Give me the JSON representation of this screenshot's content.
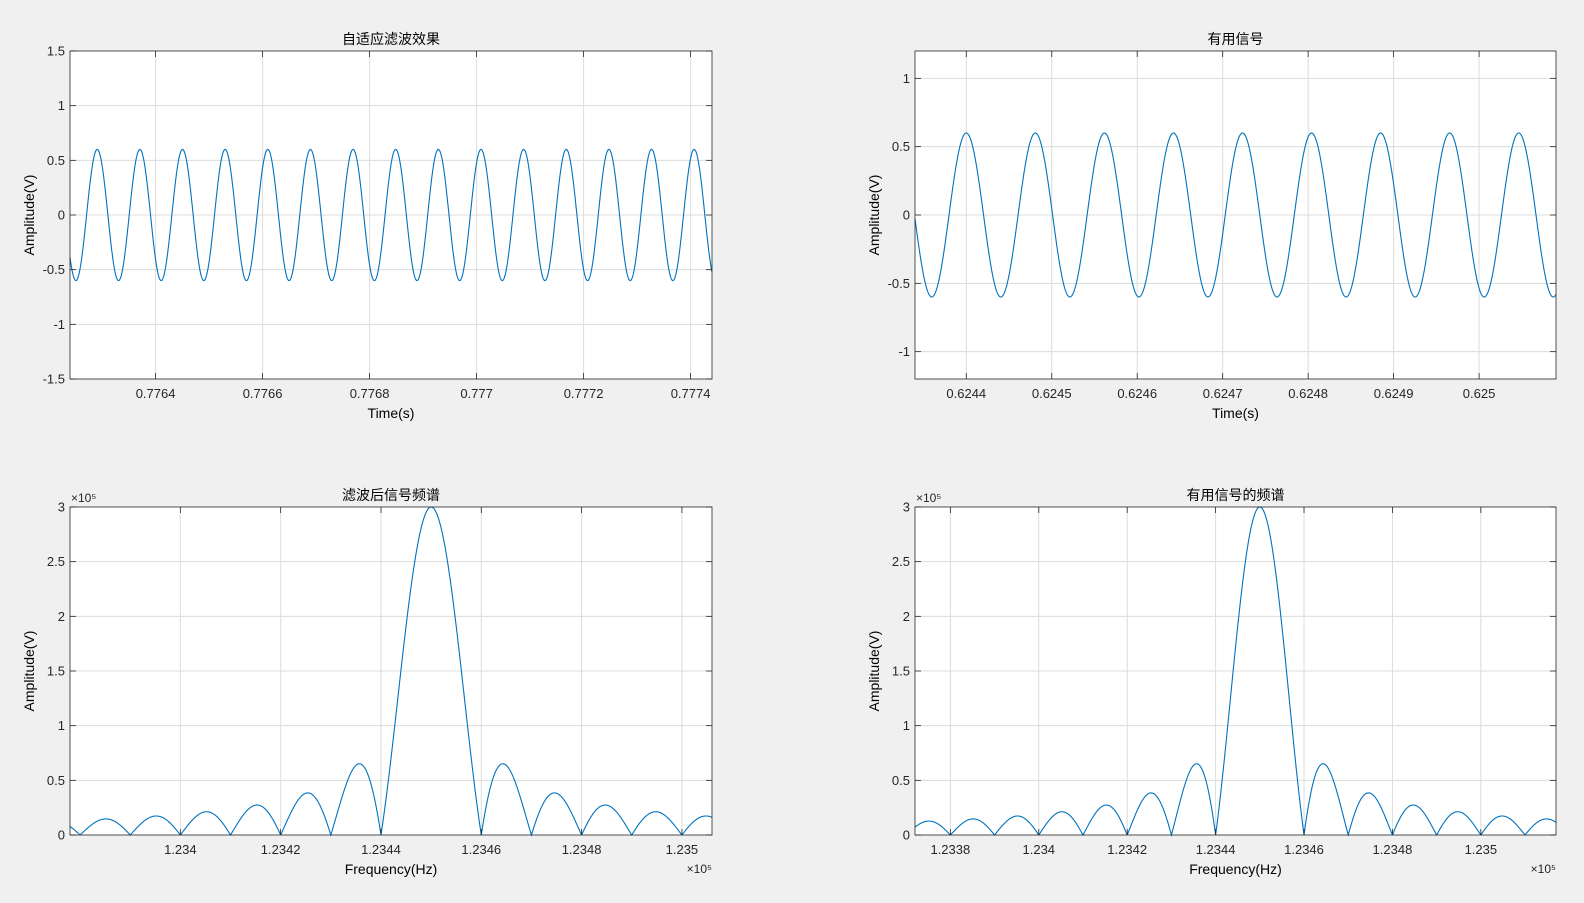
{
  "colors": {
    "figure_bg": "#f0f0f0",
    "axes_bg": "#ffffff",
    "line": "#0072bd",
    "grid": "#dcdcdc",
    "axis": "#262626"
  },
  "chart_data": [
    {
      "type": "line",
      "title": "自适应滤波效果",
      "xlabel": "Time(s)",
      "ylabel": "Amplitude(V)",
      "xlim": [
        0.77624,
        0.77744
      ],
      "ylim": [
        -1.5,
        1.5
      ],
      "xticks": [
        0.7764,
        0.7766,
        0.7768,
        0.777,
        0.7772,
        0.7774
      ],
      "xtick_labels": [
        "0.7764",
        "0.7766",
        "0.7768",
        "0.777",
        "0.7772",
        "0.7774"
      ],
      "yticks": [
        -1.5,
        -1,
        -0.5,
        0,
        0.5,
        1,
        1.5
      ],
      "ytick_labels": [
        "-1.5",
        "-1",
        "-0.5",
        "0",
        "0.5",
        "1",
        "1.5"
      ],
      "exponent": "",
      "grid": true,
      "series": [
        {
          "kind": "sine",
          "amplitude": 0.6,
          "period": 7.97e-05,
          "peak_x": 0.77653
        }
      ]
    },
    {
      "type": "line",
      "title": "有用信号",
      "xlabel": "Time(s)",
      "ylabel": "Amplitude(V)",
      "xlim": [
        0.62434,
        0.62509
      ],
      "ylim": [
        -1.2,
        1.2
      ],
      "xticks": [
        0.6244,
        0.6245,
        0.6246,
        0.6247,
        0.6248,
        0.6249,
        0.625
      ],
      "xtick_labels": [
        "0.6244",
        "0.6245",
        "0.6246",
        "0.6247",
        "0.6248",
        "0.6249",
        "0.625"
      ],
      "yticks": [
        -1,
        -0.5,
        0,
        0.5,
        1
      ],
      "ytick_labels": [
        "-1",
        "-0.5",
        "0",
        "0.5",
        "1"
      ],
      "exponent": "",
      "grid": true,
      "series": [
        {
          "kind": "sine",
          "amplitude": 0.6,
          "period": 8.08e-05,
          "peak_x": 0.6244
        }
      ]
    },
    {
      "type": "line",
      "title": "滤波后信号频谱",
      "xlabel": "Frequency(Hz)",
      "ylabel": "Amplitude(V)",
      "xlim": [
        123378,
        123506
      ],
      "ylim": [
        0,
        300000
      ],
      "xticks": [
        123400,
        123420,
        123440,
        123460,
        123480,
        123500
      ],
      "xtick_labels": [
        "1.234",
        "1.2342",
        "1.2344",
        "1.2346",
        "1.2348",
        "1.235"
      ],
      "yticks": [
        0,
        50000,
        100000,
        150000,
        200000,
        250000,
        300000
      ],
      "ytick_labels": [
        "0",
        "0.5",
        "1",
        "1.5",
        "2",
        "2.5",
        "3"
      ],
      "exponent": "×10⁵",
      "grid": true,
      "series": [
        {
          "kind": "sinc",
          "center": 123450,
          "null_spacing": 10,
          "peak": 300000
        }
      ]
    },
    {
      "type": "line",
      "title": "有用信号的频谱",
      "xlabel": "Frequency(Hz)",
      "ylabel": "Amplitude(V)",
      "xlim": [
        123372,
        123517
      ],
      "ylim": [
        0,
        300000
      ],
      "xticks": [
        123380,
        123400,
        123420,
        123440,
        123460,
        123480,
        123500
      ],
      "xtick_labels": [
        "1.2338",
        "1.234",
        "1.2342",
        "1.2344",
        "1.2346",
        "1.2348",
        "1.235"
      ],
      "yticks": [
        0,
        50000,
        100000,
        150000,
        200000,
        250000,
        300000
      ],
      "ytick_labels": [
        "0",
        "0.5",
        "1",
        "1.5",
        "2",
        "2.5",
        "3"
      ],
      "exponent": "×10⁵",
      "grid": true,
      "series": [
        {
          "kind": "sinc",
          "center": 123450,
          "null_spacing": 10,
          "peak": 300000
        }
      ]
    }
  ]
}
